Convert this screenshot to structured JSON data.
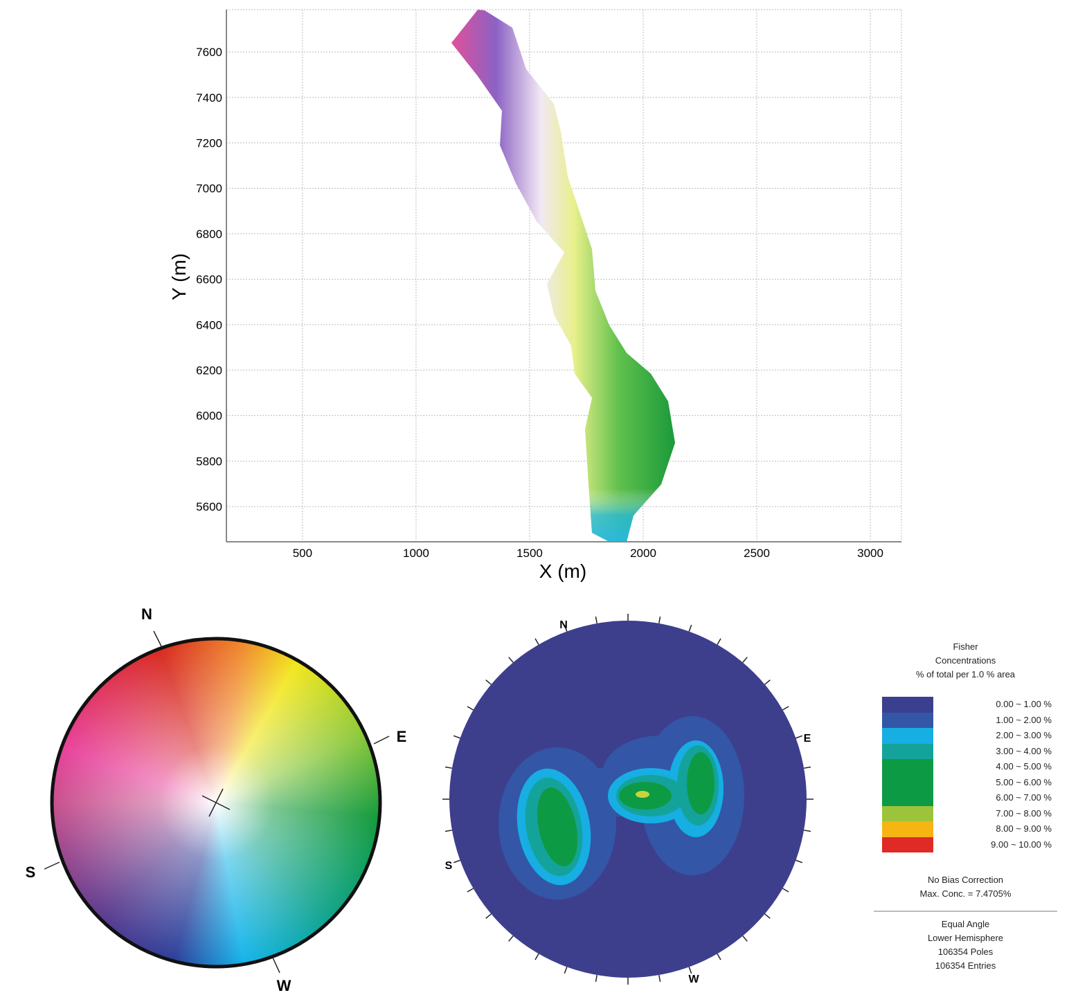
{
  "chart_data": [
    {
      "type": "scatter",
      "title": "",
      "xlabel": "X (m)",
      "ylabel": "Y (m)",
      "xlim": [
        165,
        3137
      ],
      "ylim": [
        5445,
        7786
      ],
      "x_ticks": [
        500,
        1000,
        1500,
        2000,
        2500,
        3000
      ],
      "y_ticks": [
        5600,
        5800,
        6000,
        6200,
        6400,
        6600,
        6800,
        7000,
        7200,
        7400,
        7600
      ],
      "grid": true,
      "description_layer": "slope orientation coloured terrain strip"
    },
    {
      "type": "other",
      "name": "orientation color wheel",
      "directions": [
        "N",
        "E",
        "S",
        "W"
      ]
    },
    {
      "type": "heatmap",
      "name": "stereonet",
      "directions": [
        "N",
        "E",
        "S",
        "W"
      ],
      "legend": {
        "title": [
          "Fisher",
          "Concentrations",
          "% of total per 1.0 % area"
        ],
        "bins": [
          {
            "label": "0.00 ~  1.00 %",
            "color": "#3b3f8f"
          },
          {
            "label": "1.00 ~  2.00 %",
            "color": "#3357a6"
          },
          {
            "label": "2.00 ~  3.00 %",
            "color": "#17aee3"
          },
          {
            "label": "3.00 ~  4.00 %",
            "color": "#14a39a"
          },
          {
            "label": "4.00 ~  5.00 %",
            "color": "#0d9a45"
          },
          {
            "label": "5.00 ~  6.00 %",
            "color": "#0d9a45"
          },
          {
            "label": "6.00 ~  7.00 %",
            "color": "#0d9a45"
          },
          {
            "label": "7.00 ~  8.00 %",
            "color": "#9cc43a"
          },
          {
            "label": "8.00 ~  9.00 %",
            "color": "#f6b512"
          },
          {
            "label": "9.00 ~ 10.00 %",
            "color": "#df2a25"
          }
        ],
        "notes": [
          "No Bias Correction",
          "Max. Conc. = 7.4705%"
        ],
        "footer": [
          "Equal Angle",
          "Lower Hemisphere",
          "106354 Poles",
          "106354 Entries"
        ]
      }
    }
  ]
}
